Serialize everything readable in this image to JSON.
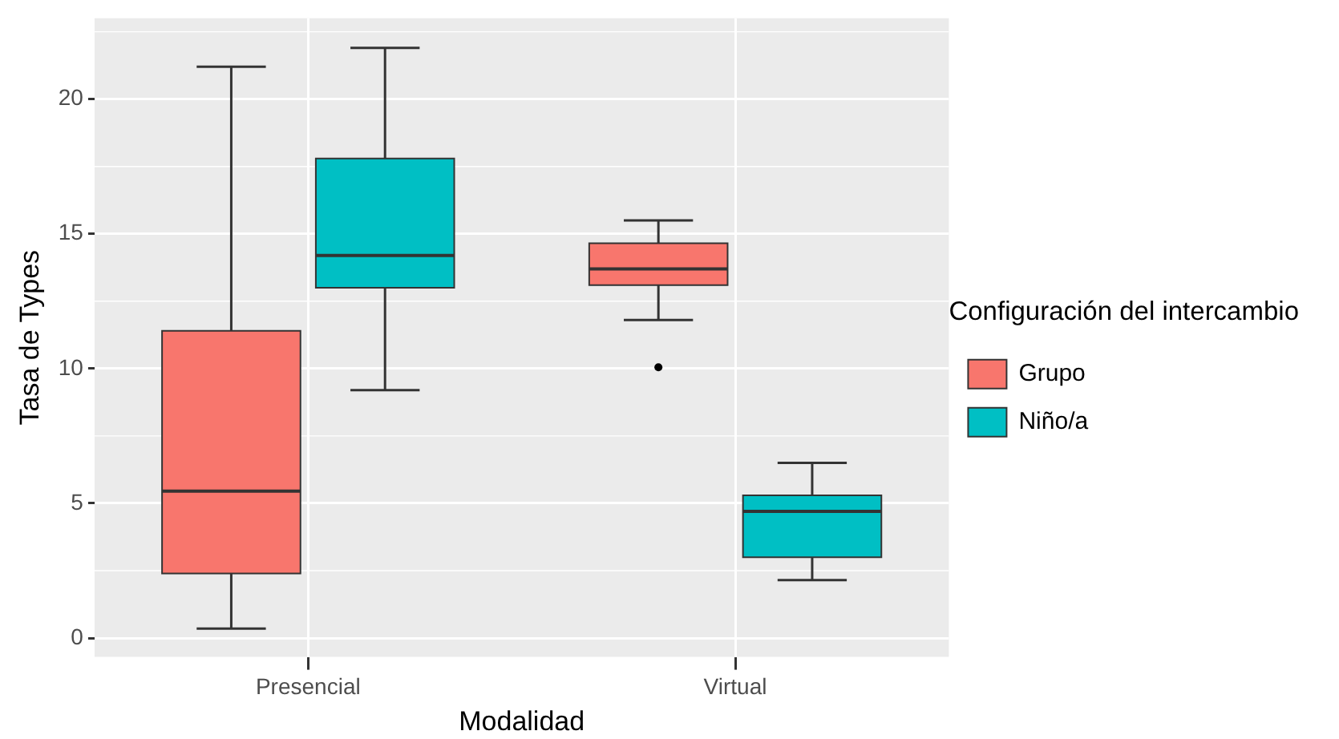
{
  "chart_data": {
    "type": "box",
    "xlabel": "Modalidad",
    "ylabel": "Tasa de Types",
    "legend_title": "Configuración del intercambio",
    "categories": [
      "Presencial",
      "Virtual"
    ],
    "series": [
      {
        "name": "Grupo",
        "color": "#f8766d",
        "boxes": [
          {
            "low": 0.35,
            "q1": 2.4,
            "median": 5.45,
            "q3": 11.4,
            "high": 21.2
          },
          {
            "low": 11.8,
            "q1": 13.1,
            "median": 13.7,
            "q3": 14.65,
            "high": 15.5,
            "outliers": [
              10.05
            ]
          }
        ]
      },
      {
        "name": "Niño/a",
        "color": "#00bfc4",
        "boxes": [
          {
            "low": 9.2,
            "q1": 13.0,
            "median": 14.2,
            "q3": 17.8,
            "high": 21.9
          },
          {
            "low": 2.15,
            "q1": 3.0,
            "median": 4.7,
            "q3": 5.3,
            "high": 6.5
          }
        ]
      }
    ],
    "ylim": [
      -0.7,
      23
    ],
    "yticks": [
      0,
      5,
      10,
      15,
      20
    ],
    "grid": true,
    "legend": "right"
  }
}
